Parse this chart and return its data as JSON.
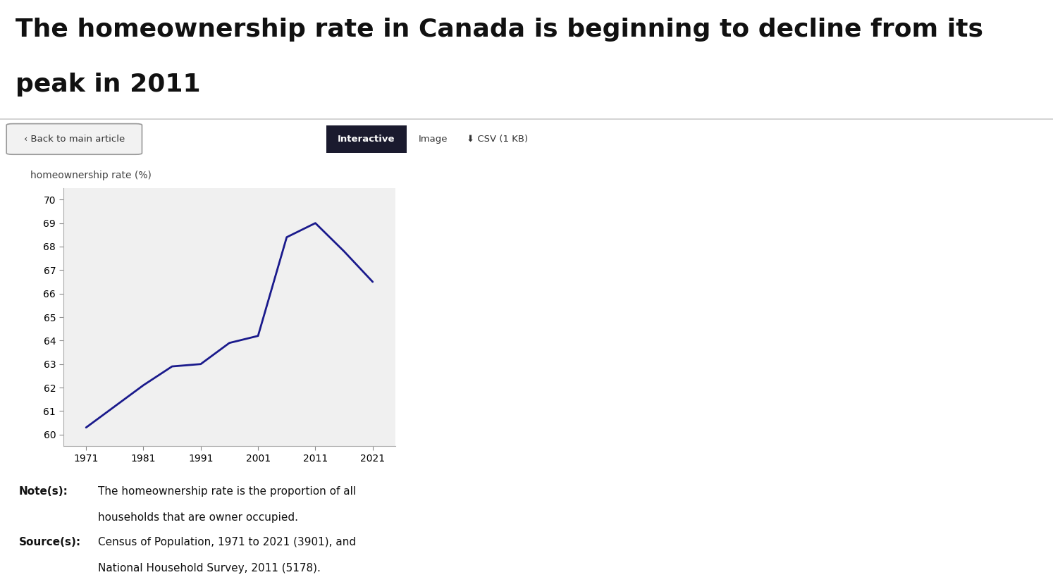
{
  "title_line1": "The homeownership rate in Canada is beginning to decline from its",
  "title_line2": "peak in 2011",
  "ylabel": "homeownership rate (%)",
  "years": [
    1971,
    1981,
    1986,
    1991,
    1996,
    2001,
    2006,
    2011,
    2016,
    2021
  ],
  "values": [
    60.3,
    62.1,
    62.9,
    63.0,
    63.9,
    64.2,
    68.4,
    69.0,
    67.8,
    66.5
  ],
  "xticks": [
    1971,
    1981,
    1991,
    2001,
    2011,
    2021
  ],
  "yticks": [
    60,
    61,
    62,
    63,
    64,
    65,
    66,
    67,
    68,
    69,
    70
  ],
  "ylim": [
    59.5,
    70.5
  ],
  "xlim": [
    1967,
    2025
  ],
  "line_color": "#1a1a8c",
  "line_width": 2.0,
  "plot_bg_color": "#f0f0f0",
  "outer_bg_color": "#e8e8e8",
  "page_bg_color": "#ffffff",
  "note_text1": "The homeownership rate is the proportion of all",
  "note_text2": "households that are owner occupied.",
  "source_text1": "Census of Population, 1971 to 2021 (3901), and",
  "source_text2": "National Household Survey, 2011 (5178).",
  "title_fontsize": 26,
  "axis_label_fontsize": 10,
  "tick_fontsize": 10,
  "note_fontsize": 11
}
